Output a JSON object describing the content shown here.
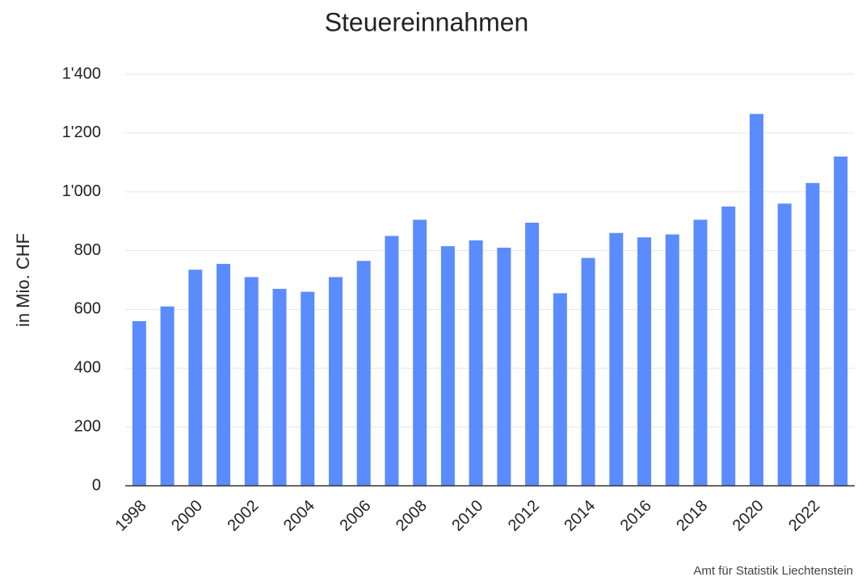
{
  "chart_data": {
    "type": "bar",
    "title": "Steuereinnahmen",
    "y_label": "in Mio. CHF",
    "source": "Amt für Statistik Liechtenstein",
    "categories": [
      "1998",
      null,
      "2000",
      null,
      "2002",
      null,
      "2004",
      null,
      "2006",
      null,
      "2008",
      null,
      "2010",
      null,
      "2012",
      null,
      "2014",
      null,
      "2016",
      null,
      "2018",
      null,
      "2020",
      null,
      "2022",
      null
    ],
    "values": [
      560,
      610,
      735,
      755,
      710,
      670,
      660,
      710,
      765,
      850,
      905,
      815,
      835,
      810,
      895,
      655,
      775,
      860,
      845,
      855,
      905,
      950,
      1265,
      960,
      1030,
      1120
    ],
    "color": "#5b8cff",
    "ylim": [
      0,
      1400
    ],
    "yticks": [
      0,
      200,
      400,
      600,
      800,
      {
        "value": 1000,
        "label": "1'000"
      },
      {
        "value": 1200,
        "label": "1'200"
      },
      {
        "value": 1400,
        "label": "1'400"
      }
    ],
    "grid": true
  }
}
